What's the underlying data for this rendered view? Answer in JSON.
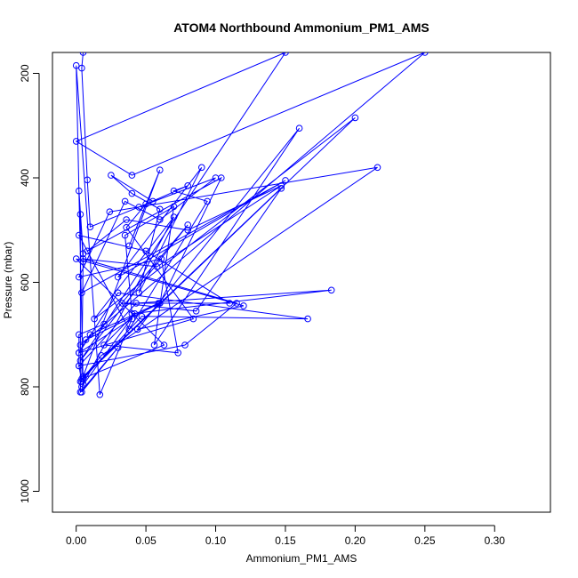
{
  "chart_data": {
    "type": "line",
    "title": "ATOM4 Northbound Ammonium_PM1_AMS",
    "xlabel": "Ammonium_PM1_AMS",
    "ylabel": "Pressure (mbar)",
    "xlim": [
      -0.017,
      0.34
    ],
    "ylim": [
      1040,
      160
    ],
    "xticks": [
      0.0,
      0.05,
      0.1,
      0.15,
      0.2,
      0.25,
      0.3
    ],
    "xtick_labels": [
      "0.00",
      "0.05",
      "0.10",
      "0.15",
      "0.20",
      "0.25",
      "0.30"
    ],
    "yticks": [
      200,
      400,
      600,
      800,
      1000
    ],
    "ytick_labels": [
      "200",
      "400",
      "600",
      "800",
      "1000"
    ],
    "grid": false,
    "legend": false,
    "color": "#0000ff",
    "series": [
      {
        "x": [
          0.005,
          0.004,
          0.008,
          0.01,
          0.055,
          0.025,
          0.04,
          0.06,
          0.045,
          0.09,
          0.03,
          0.15,
          0.004,
          0.035,
          0.06,
          0.1,
          0.045,
          0.08,
          0.07,
          0.094,
          0.038,
          0.002,
          0.05,
          0.11,
          0.06,
          0.104,
          0.008,
          0.036,
          0.08,
          0.147,
          0.058,
          0.005,
          0.115,
          0.078,
          0.002,
          0.043,
          0.183,
          0.04,
          0.035,
          0.07,
          0.056,
          0.16,
          0.044,
          0.12,
          0.0,
          0.063,
          0.004,
          0.147,
          0.086,
          0.033,
          0.059,
          0.01,
          0.002,
          0.03,
          0.166,
          0.047,
          0.003,
          0.018,
          0.216,
          0.024,
          0.002,
          0.061,
          0.073,
          0.02,
          0.042,
          0.004,
          0.07,
          0.013,
          0.2,
          0.005,
          0.06,
          0.038,
          0.05,
          0.036,
          0.084,
          0.002,
          0.04,
          0.017,
          0.0,
          0.005,
          0.004,
          0.03,
          0.003,
          0.003,
          0.005,
          0.002,
          0.005,
          0.004,
          0.002,
          0.002,
          0.02,
          0.08,
          0.003,
          0.15,
          0.0,
          0.04,
          0.25,
          0.003,
          0.007,
          0.06
        ],
        "y": [
          160,
          190,
          404,
          494,
          445,
          395,
          430,
          460,
          620,
          380,
          590,
          405,
          620,
          445,
          480,
          400,
          456,
          415,
          425,
          445,
          690,
          510,
          540,
          640,
          640,
          400,
          540,
          480,
          500,
          415,
          570,
          555,
          640,
          720,
          760,
          640,
          615,
          660,
          510,
          455,
          720,
          305,
          690,
          645,
          555,
          720,
          785,
          420,
          655,
          640,
          640,
          700,
          735,
          620,
          670,
          665,
          790,
          740,
          380,
          465,
          590,
          555,
          735,
          720,
          660,
          800,
          475,
          670,
          285,
          780,
          385,
          530,
          450,
          495,
          670,
          735,
          670,
          815,
          185,
          795,
          810,
          725,
          810,
          470,
          560,
          425,
          545,
          790,
          760,
          700,
          680,
          490,
          750,
          160,
          330,
          395,
          160,
          720,
          710,
          640
        ]
      }
    ]
  }
}
